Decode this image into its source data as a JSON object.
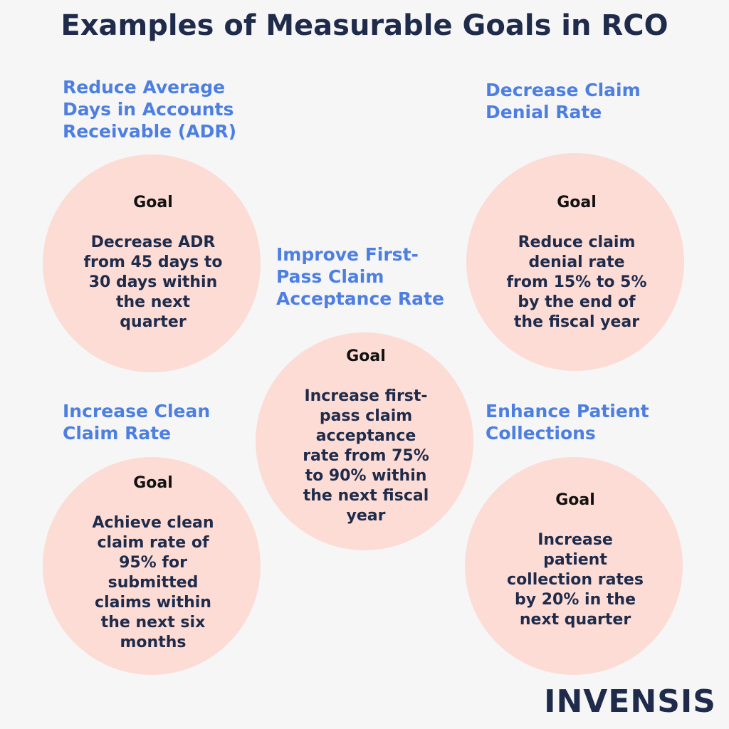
{
  "header": {
    "title": "Examples of Measurable Goals in RCO"
  },
  "goals": [
    {
      "heading_lines": [
        "Reduce Average",
        "Days in Accounts",
        "Receivable (ADR)"
      ],
      "goal_label": "Goal",
      "description_lines": [
        "Decrease ADR",
        "from 45 days to",
        "30 days within",
        "the next",
        "quarter"
      ]
    },
    {
      "heading_lines": [
        "Decrease Claim",
        "Denial Rate"
      ],
      "goal_label": "Goal",
      "description_lines": [
        "Reduce claim",
        "denial rate",
        "from 15% to 5%",
        "by the end of",
        "the fiscal year"
      ]
    },
    {
      "heading_lines": [
        "Improve First-",
        "Pass Claim",
        "Acceptance Rate"
      ],
      "goal_label": "Goal",
      "description_lines": [
        "Increase first-",
        "pass claim",
        "acceptance",
        "rate from 75%",
        "to 90% within",
        "the next fiscal",
        "year"
      ]
    },
    {
      "heading_lines": [
        "Increase Clean",
        "Claim Rate"
      ],
      "goal_label": "Goal",
      "description_lines": [
        "Achieve clean",
        "claim rate of",
        "95% for",
        "submitted",
        "claims within",
        "the next six",
        "months"
      ]
    },
    {
      "heading_lines": [
        "Enhance Patient",
        "Collections"
      ],
      "goal_label": "Goal",
      "description_lines": [
        "Increase",
        "patient",
        "collection rates",
        "by 20% in the",
        "next quarter"
      ]
    }
  ],
  "logo": {
    "text": "INVENSIS"
  }
}
